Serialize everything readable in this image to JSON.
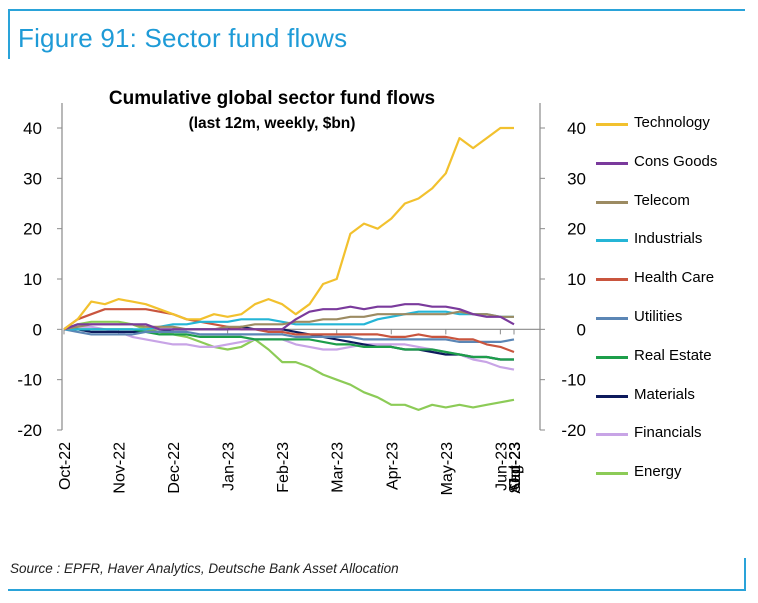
{
  "figure_label": "Figure 91: Sector fund flows",
  "source": "Source : EPFR, Haver Analytics, Deutsche Bank Asset Allocation",
  "chart_data": {
    "type": "line",
    "title": "Cumulative global sector fund flows",
    "subtitle": "(last 12m, weekly, $bn)",
    "ylim": [
      -20,
      40
    ],
    "yticks": [
      40,
      30,
      20,
      10,
      0,
      -10,
      -20
    ],
    "ytick_labels": [
      "40",
      "30",
      "20",
      "10",
      "0",
      "-10",
      "-20"
    ],
    "x_tick_labels": [
      "Oct-22",
      "Nov-22",
      "Dec-22",
      "Jan-23",
      "Feb-23",
      "Mar-23",
      "Apr-23",
      "May-23",
      "Jun-23",
      "Jul-23",
      "Aug-23",
      "Sep-23",
      "Oct-23"
    ],
    "points_per_month": 4,
    "series": [
      {
        "name": "Technology",
        "color": "#f2c12e",
        "values": [
          0,
          2,
          5.5,
          5,
          6,
          5.5,
          5,
          4,
          3,
          2,
          2,
          3,
          2.5,
          3,
          5,
          6,
          5,
          3,
          5,
          9,
          10,
          19,
          21,
          20,
          22,
          25,
          26,
          28,
          31,
          38,
          36,
          38,
          40,
          40
        ]
      },
      {
        "name": "Cons Goods",
        "color": "#7a3a9c",
        "values": [
          0,
          1,
          1,
          1,
          1,
          1,
          1,
          0,
          0,
          0,
          0,
          0,
          0,
          0,
          0,
          0,
          0,
          2,
          3.5,
          4,
          4,
          4.5,
          4,
          4.5,
          4.5,
          5,
          5,
          4.5,
          4.5,
          4,
          3,
          2.5,
          2.5,
          1
        ]
      },
      {
        "name": "Telecom",
        "color": "#9c8b62",
        "values": [
          0,
          0.5,
          1,
          1,
          1,
          1,
          0.5,
          0.5,
          0.5,
          0,
          0,
          0,
          0.5,
          0.5,
          1,
          1,
          1,
          1.5,
          1.5,
          2,
          2,
          2.5,
          2.5,
          3,
          3,
          3,
          3,
          3,
          3,
          3.5,
          3,
          3,
          2.5,
          2.5
        ]
      },
      {
        "name": "Industrials",
        "color": "#25b5d6",
        "values": [
          0,
          0,
          0,
          0,
          0,
          0,
          0,
          0.5,
          1,
          1,
          1.5,
          1.5,
          1.5,
          2,
          2,
          2,
          1.5,
          1,
          1,
          1,
          1,
          1,
          1,
          2,
          2.5,
          3,
          3.5,
          3.5,
          3.5,
          3,
          3,
          3,
          2.5,
          2.5
        ]
      },
      {
        "name": "Health Care",
        "color": "#c9553e",
        "values": [
          0,
          2,
          3,
          4,
          4,
          4,
          4,
          3.5,
          3,
          2,
          1.5,
          1,
          0.5,
          0,
          0,
          -0.5,
          -0.5,
          -1,
          -1,
          -1,
          -1,
          -1,
          -1,
          -1,
          -1.5,
          -1.5,
          -1,
          -1.5,
          -1.5,
          -2,
          -2,
          -3,
          -3.5,
          -4.5
        ]
      },
      {
        "name": "Utilities",
        "color": "#5b86b5",
        "values": [
          0,
          -0.5,
          -1,
          -1,
          -1,
          -1,
          -0.5,
          -0.5,
          -0.5,
          -0.5,
          -1,
          -1,
          -1,
          -1,
          -1,
          -1,
          -1,
          -1.5,
          -1.5,
          -1.5,
          -1.5,
          -1.5,
          -2,
          -2,
          -2,
          -2,
          -2,
          -2,
          -2,
          -2.5,
          -2.5,
          -2.5,
          -2.5,
          -2
        ]
      },
      {
        "name": "Real Estate",
        "color": "#1d9e4a",
        "values": [
          0,
          0,
          0,
          0,
          0,
          0,
          -0.5,
          -1,
          -1,
          -1,
          -1.5,
          -1.5,
          -1.5,
          -1.5,
          -2,
          -2,
          -2,
          -2,
          -2,
          -2.5,
          -3,
          -3,
          -3.5,
          -3.5,
          -3.5,
          -4,
          -4,
          -4,
          -4.5,
          -5,
          -5.5,
          -5.5,
          -6,
          -6
        ]
      },
      {
        "name": "Materials",
        "color": "#0d1a5c",
        "values": [
          0,
          0,
          -0.5,
          -0.5,
          -0.5,
          -0.5,
          -0.5,
          -0.5,
          0,
          0,
          0,
          0,
          0,
          0.5,
          0,
          0,
          0,
          -0.5,
          -1,
          -1.5,
          -2,
          -2.5,
          -3,
          -3.5,
          -3.5,
          -4,
          -4,
          -4.5,
          -5,
          -5,
          -5.5,
          -5.5,
          -6,
          -6
        ]
      },
      {
        "name": "Financials",
        "color": "#c8a4e6",
        "values": [
          0,
          0.5,
          0.5,
          0,
          -0.5,
          -1.5,
          -2,
          -2.5,
          -3,
          -3,
          -3.5,
          -3.5,
          -3,
          -2.5,
          -2,
          -2,
          -2,
          -3,
          -3.5,
          -4,
          -4,
          -3.5,
          -3,
          -3,
          -3,
          -3,
          -3.5,
          -4,
          -4.5,
          -5,
          -6,
          -6.5,
          -7.5,
          -8
        ]
      },
      {
        "name": "Energy",
        "color": "#8ccb57",
        "values": [
          0,
          1,
          1.5,
          1.5,
          1.5,
          1,
          0,
          -0.5,
          -1,
          -1.5,
          -2.5,
          -3.5,
          -4,
          -3.5,
          -2,
          -4,
          -6.5,
          -6.5,
          -7.5,
          -9,
          -10,
          -11,
          -12.5,
          -13.5,
          -15,
          -15,
          -16,
          -15,
          -15.5,
          -15,
          -15.5,
          -15,
          -14.5,
          -14
        ]
      }
    ]
  }
}
